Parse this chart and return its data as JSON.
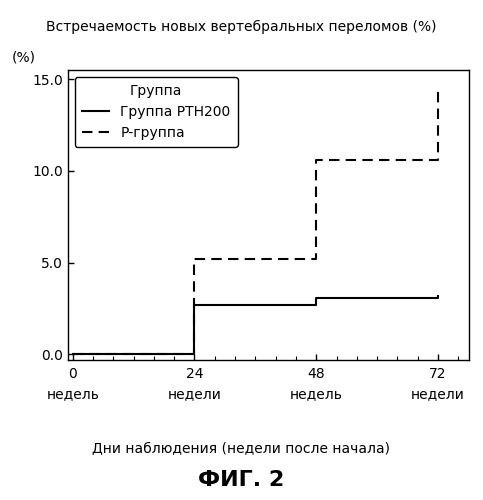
{
  "title": "Встречаемость новых вертебральных переломов (%)",
  "ylabel": "(%)",
  "xlabel": "Дни наблюдения (недели после начала)",
  "figure_label": "ФИГ. 2",
  "xtick_positions": [
    0,
    24,
    48,
    72
  ],
  "xtick_numbers": [
    "0",
    "24",
    "48",
    "72"
  ],
  "xtick_sublabels": [
    "недель",
    "недели",
    "недель",
    "недели"
  ],
  "ytick_positions": [
    0.0,
    5.0,
    10.0,
    15.0
  ],
  "ytick_labels": [
    "0.0",
    "5.0",
    "10.0",
    "15.0"
  ],
  "ylim": [
    -0.3,
    15.5
  ],
  "xlim": [
    -1,
    78
  ],
  "legend_title": "Группа",
  "line1_label": "Группа РТН200",
  "line2_label": "Р-группа",
  "line1_color": "#000000",
  "line2_color": "#000000",
  "line1_x": [
    0,
    24,
    24,
    48,
    48,
    72,
    72
  ],
  "line1_y": [
    0.0,
    0.0,
    2.7,
    2.7,
    3.1,
    3.1,
    3.2
  ],
  "line2_x": [
    0,
    24,
    24,
    48,
    48,
    66,
    66,
    72,
    72
  ],
  "line2_y": [
    0.0,
    0.0,
    5.2,
    5.2,
    10.6,
    10.6,
    10.6,
    10.6,
    14.5
  ],
  "background_color": "#ffffff",
  "title_fontsize": 10,
  "axis_label_fontsize": 10,
  "tick_fontsize": 10,
  "legend_fontsize": 10,
  "fig_label_fontsize": 16
}
